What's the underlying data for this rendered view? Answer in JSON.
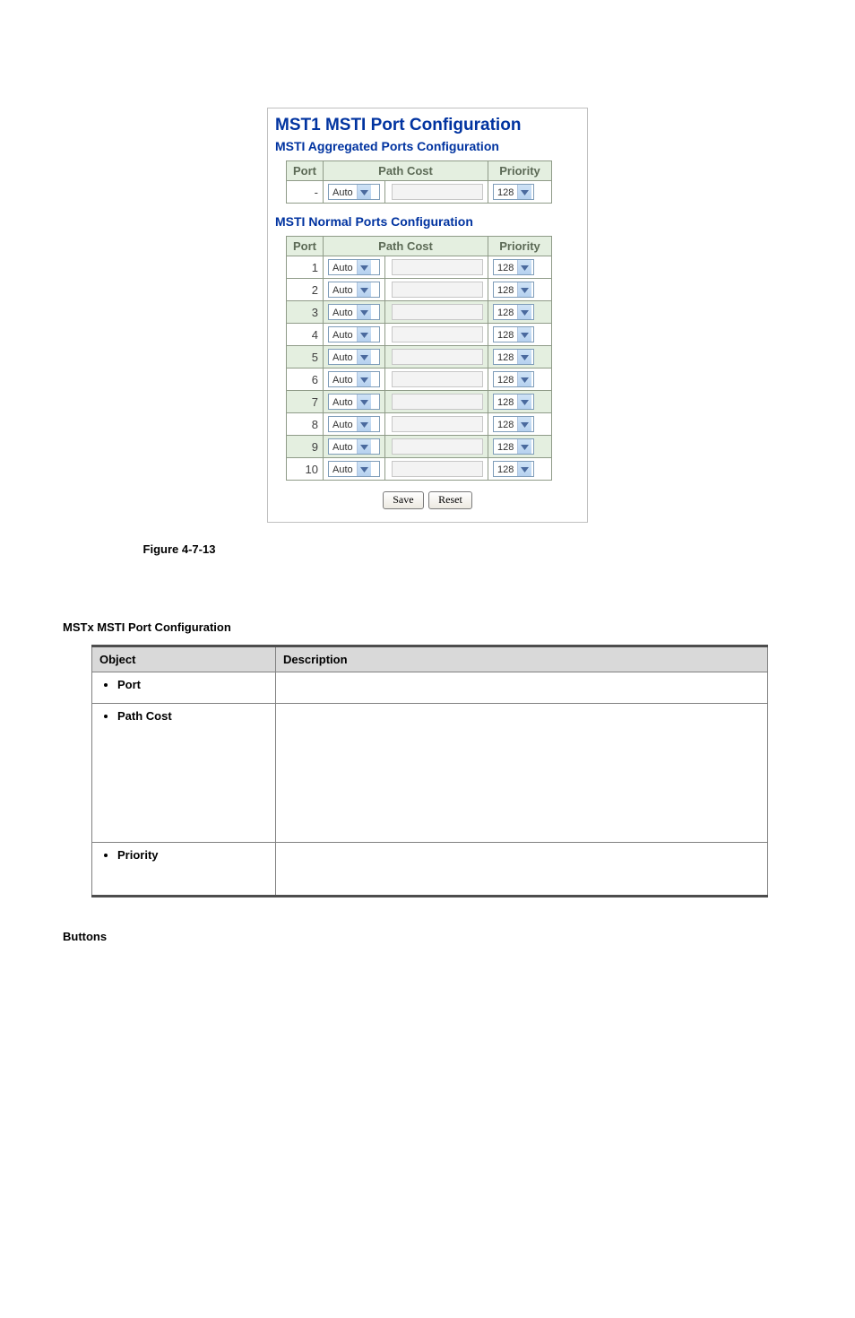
{
  "config": {
    "mainTitle": "MST1 MSTI Port Configuration",
    "aggTitle": "MSTI Aggregated Ports Configuration",
    "normalTitle": "MSTI Normal Ports Configuration",
    "headers": {
      "port": "Port",
      "pathCost": "Path Cost",
      "priority": "Priority"
    },
    "aggRow": {
      "port": "-",
      "costMode": "Auto",
      "priority": "128"
    },
    "normalRows": [
      {
        "port": "1",
        "costMode": "Auto",
        "priority": "128",
        "alt": false
      },
      {
        "port": "2",
        "costMode": "Auto",
        "priority": "128",
        "alt": false
      },
      {
        "port": "3",
        "costMode": "Auto",
        "priority": "128",
        "alt": true
      },
      {
        "port": "4",
        "costMode": "Auto",
        "priority": "128",
        "alt": false
      },
      {
        "port": "5",
        "costMode": "Auto",
        "priority": "128",
        "alt": true
      },
      {
        "port": "6",
        "costMode": "Auto",
        "priority": "128",
        "alt": false
      },
      {
        "port": "7",
        "costMode": "Auto",
        "priority": "128",
        "alt": true
      },
      {
        "port": "8",
        "costMode": "Auto",
        "priority": "128",
        "alt": false
      },
      {
        "port": "9",
        "costMode": "Auto",
        "priority": "128",
        "alt": true
      },
      {
        "port": "10",
        "costMode": "Auto",
        "priority": "128",
        "alt": false
      }
    ],
    "buttons": {
      "save": "Save",
      "reset": "Reset"
    }
  },
  "figureCaption": "Figure 4-7-13",
  "sectionHeading": "MSTx MSTI Port Configuration",
  "descTable": {
    "headers": {
      "object": "Object",
      "description": "Description"
    },
    "rows": [
      {
        "object": "Port",
        "heightClass": "desc-col"
      },
      {
        "object": "Path Cost",
        "heightClass": "desc-tall"
      },
      {
        "object": "Priority",
        "heightClass": "desc-med"
      }
    ]
  },
  "buttonsHeading": "Buttons",
  "colors": {
    "headingBlue": "#0033a0",
    "tableHeaderBg": "#e4efe0",
    "tableBorder": "#8f9b88",
    "dropdownBorder": "#7f9db9",
    "descHeaderBg": "#d9d9d9",
    "descBorderDark": "#4d4d4d"
  }
}
